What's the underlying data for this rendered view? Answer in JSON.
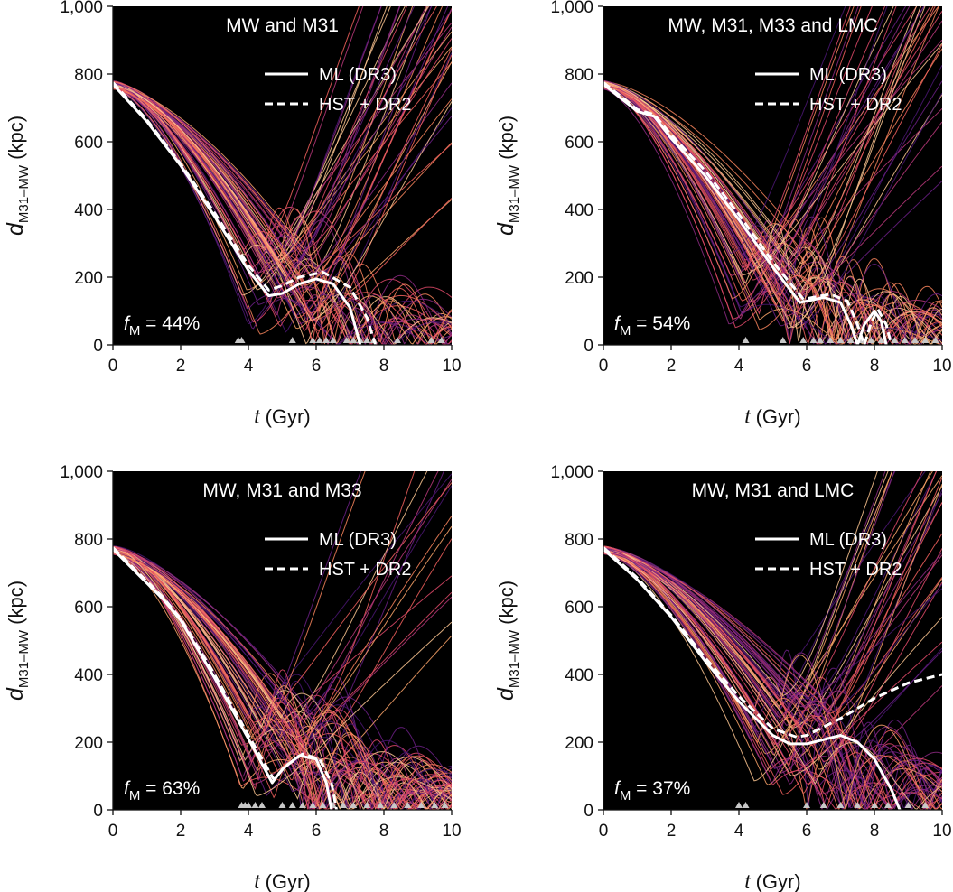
{
  "chart_data": [
    {
      "type": "line",
      "title": "MW and M31",
      "xlabel_italic": "t",
      "xlabel_rest": " (Gyr)",
      "ylabel_main": "d",
      "ylabel_sub": "M31–MW",
      "ylabel_rest": " (kpc)",
      "xlim": [
        0,
        10
      ],
      "ylim": [
        0,
        1000
      ],
      "xticks": [
        "0",
        "2",
        "4",
        "6",
        "8",
        "10"
      ],
      "yticks": [
        "0",
        "200",
        "400",
        "600",
        "800",
        "1,000"
      ],
      "annotation_main": "f",
      "annotation_sub": "M",
      "annotation_rest": " = 44%",
      "background": "#000000",
      "legend_position": "top-right",
      "series": [
        {
          "name": "ML (DR3)",
          "style": "solid",
          "color": "#ffffff",
          "x": [
            0,
            1,
            2,
            3,
            4,
            4.6,
            5,
            5.5,
            6,
            6.5,
            7,
            7.3
          ],
          "y": [
            770,
            660,
            530,
            380,
            220,
            145,
            152,
            180,
            195,
            180,
            110,
            0
          ]
        },
        {
          "name": "HST + DR2",
          "style": "dashed",
          "color": "#ffffff",
          "x": [
            0,
            1,
            2,
            3,
            4,
            4.6,
            5,
            5.5,
            6.2,
            7,
            7.5,
            7.75
          ],
          "y": [
            775,
            665,
            535,
            390,
            235,
            162,
            175,
            200,
            215,
            170,
            80,
            0
          ]
        }
      ],
      "merger_times": [
        3.7,
        3.8,
        5.3,
        5.9,
        6.1,
        6.3,
        6.5,
        6.9,
        7.1,
        7.3,
        7.5,
        7.7,
        8.4,
        9.4,
        9.7
      ],
      "ensemble_seed": 1,
      "ensemble_type": "mostly-escaping"
    },
    {
      "type": "line",
      "title": "MW, M31, M33 and LMC",
      "xlabel_italic": "t",
      "xlabel_rest": " (Gyr)",
      "ylabel_main": "d",
      "ylabel_sub": "M31–MW",
      "ylabel_rest": " (kpc)",
      "xlim": [
        0,
        10
      ],
      "ylim": [
        0,
        1000
      ],
      "xticks": [
        "0",
        "2",
        "4",
        "6",
        "8",
        "10"
      ],
      "yticks": [
        "0",
        "200",
        "400",
        "600",
        "800",
        "1,000"
      ],
      "annotation_main": "f",
      "annotation_sub": "M",
      "annotation_rest": " = 54%",
      "background": "#000000",
      "legend_position": "top-right",
      "series": [
        {
          "name": "ML (DR3)",
          "style": "solid",
          "color": "#ffffff",
          "x": [
            0,
            0.5,
            1,
            1.5,
            2,
            3,
            4,
            5,
            5.8,
            6.5,
            7,
            7.3,
            7.5,
            7.7,
            8,
            8.2,
            8.35
          ],
          "y": [
            770,
            730,
            690,
            675,
            610,
            500,
            370,
            230,
            125,
            140,
            125,
            60,
            0,
            60,
            100,
            70,
            0
          ]
        },
        {
          "name": "HST + DR2",
          "style": "dashed",
          "color": "#ffffff",
          "x": [
            0,
            0.5,
            1,
            1.5,
            2,
            3,
            4,
            5,
            5.9,
            6.7,
            7.2,
            7.5,
            7.7,
            7.9,
            8.1,
            8.35,
            8.5
          ],
          "y": [
            775,
            735,
            695,
            680,
            620,
            515,
            385,
            245,
            135,
            150,
            130,
            60,
            0,
            65,
            105,
            60,
            0
          ]
        }
      ],
      "merger_times": [
        4.2,
        5.3,
        5.9,
        6.2,
        6.4,
        6.7,
        7.0,
        7.3,
        7.6,
        7.9,
        8.2,
        8.6,
        8.9,
        9.2,
        9.5,
        9.8
      ],
      "ensemble_seed": 2,
      "ensemble_type": "mixed"
    },
    {
      "type": "line",
      "title": "MW, M31 and M33",
      "xlabel_italic": "t",
      "xlabel_rest": " (Gyr)",
      "ylabel_main": "d",
      "ylabel_sub": "M31–MW",
      "ylabel_rest": " (kpc)",
      "xlim": [
        0,
        10
      ],
      "ylim": [
        0,
        1000
      ],
      "xticks": [
        "0",
        "2",
        "4",
        "6",
        "8",
        "10"
      ],
      "yticks": [
        "0",
        "200",
        "400",
        "600",
        "800",
        "1,000"
      ],
      "annotation_main": "f",
      "annotation_sub": "M",
      "annotation_rest": " = 63%",
      "background": "#000000",
      "legend_position": "top-right",
      "series": [
        {
          "name": "ML (DR3)",
          "style": "solid",
          "color": "#ffffff",
          "x": [
            0,
            1,
            1.5,
            2,
            3,
            4,
            4.7,
            5,
            5.5,
            6,
            6.3,
            6.45
          ],
          "y": [
            770,
            670,
            620,
            560,
            390,
            210,
            80,
            120,
            160,
            150,
            80,
            0
          ]
        },
        {
          "name": "HST + DR2",
          "style": "dashed",
          "color": "#ffffff",
          "x": [
            0,
            1,
            1.5,
            2,
            3,
            4,
            4.75,
            5.1,
            5.6,
            6.1,
            6.45,
            6.6
          ],
          "y": [
            775,
            675,
            625,
            565,
            400,
            220,
            90,
            130,
            165,
            150,
            80,
            0
          ]
        }
      ],
      "merger_times": [
        3.8,
        3.9,
        4.0,
        4.2,
        4.4,
        5.0,
        5.3,
        5.6,
        5.9,
        6.2,
        6.5,
        6.8,
        7.1,
        7.5,
        7.9,
        8.3,
        8.7,
        9.1,
        9.5,
        9.8
      ],
      "ensemble_seed": 3,
      "ensemble_type": "mostly-merging"
    },
    {
      "type": "line",
      "title": "MW, M31 and LMC",
      "xlabel_italic": "t",
      "xlabel_rest": " (Gyr)",
      "ylabel_main": "d",
      "ylabel_sub": "M31–MW",
      "ylabel_rest": " (kpc)",
      "xlim": [
        0,
        10
      ],
      "ylim": [
        0,
        1000
      ],
      "xticks": [
        "0",
        "2",
        "4",
        "6",
        "8",
        "10"
      ],
      "yticks": [
        "0",
        "200",
        "400",
        "600",
        "800",
        "1,000"
      ],
      "annotation_main": "f",
      "annotation_sub": "M",
      "annotation_rest": " = 37%",
      "background": "#000000",
      "legend_position": "top-right",
      "series": [
        {
          "name": "ML (DR3)",
          "style": "solid",
          "color": "#ffffff",
          "x": [
            0,
            1,
            2,
            3,
            4,
            5,
            5.5,
            6,
            7,
            7.5,
            8,
            8.5,
            8.75
          ],
          "y": [
            770,
            680,
            570,
            440,
            320,
            220,
            195,
            195,
            220,
            200,
            150,
            60,
            0
          ]
        },
        {
          "name": "HST + DR2",
          "style": "dashed",
          "color": "#ffffff",
          "x": [
            0,
            1,
            2,
            3,
            4,
            5,
            5.7,
            6,
            7,
            8,
            9,
            10
          ],
          "y": [
            775,
            685,
            575,
            450,
            335,
            240,
            215,
            220,
            270,
            330,
            375,
            400
          ]
        }
      ],
      "merger_times": [
        4.0,
        4.2,
        6.0,
        6.5,
        7.0,
        7.5,
        8.0,
        8.4,
        9.0,
        9.5
      ],
      "ensemble_seed": 4,
      "ensemble_type": "mostly-escaping"
    }
  ]
}
